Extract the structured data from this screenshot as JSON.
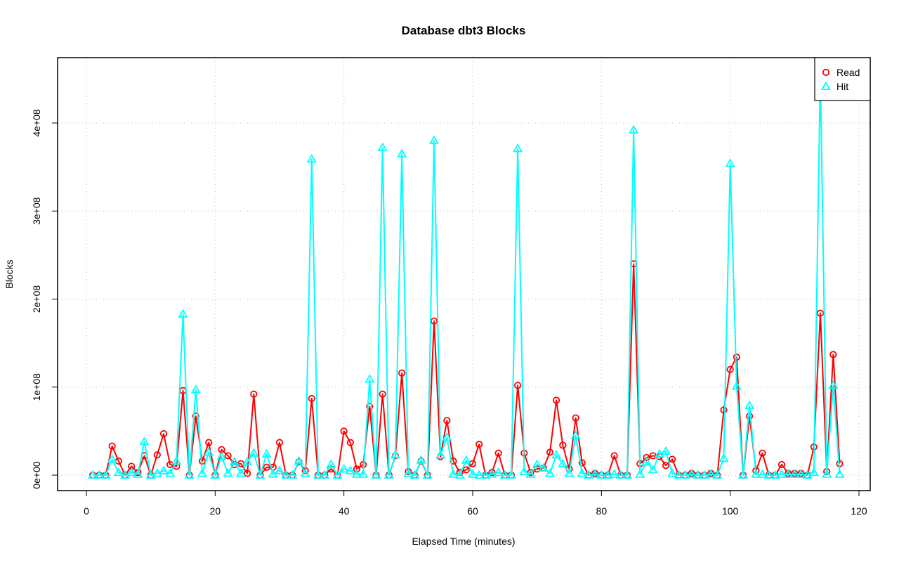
{
  "chart_data": {
    "type": "line",
    "title": "Database dbt3 Blocks",
    "xlabel": "Elapsed Time (minutes)",
    "ylabel": "Blocks",
    "xlim": [
      0,
      120
    ],
    "ylim": [
      0,
      460000000
    ],
    "x_ticks": [
      0,
      20,
      40,
      60,
      80,
      100,
      120
    ],
    "x_tick_labels": [
      "0",
      "20",
      "40",
      "60",
      "80",
      "100",
      "120"
    ],
    "y_ticks": [
      0,
      100000000,
      200000000,
      300000000,
      400000000
    ],
    "y_tick_labels": [
      "0e+00",
      "1e+08",
      "2e+08",
      "3e+08",
      "4e+08"
    ],
    "grid": true,
    "legend_position": "top-right",
    "x": [
      1,
      2,
      3,
      4,
      5,
      6,
      7,
      8,
      9,
      10,
      11,
      12,
      13,
      14,
      15,
      16,
      17,
      18,
      19,
      20,
      21,
      22,
      23,
      24,
      25,
      26,
      27,
      28,
      29,
      30,
      31,
      32,
      33,
      34,
      35,
      36,
      37,
      38,
      39,
      40,
      41,
      42,
      43,
      44,
      45,
      46,
      47,
      48,
      49,
      50,
      51,
      52,
      53,
      54,
      55,
      56,
      57,
      58,
      59,
      60,
      61,
      62,
      63,
      64,
      65,
      66,
      67,
      68,
      69,
      70,
      71,
      72,
      73,
      74,
      75,
      76,
      77,
      78,
      79,
      80,
      81,
      82,
      83,
      84,
      85,
      86,
      87,
      88,
      89,
      90,
      91,
      92,
      93,
      94,
      95,
      96,
      97,
      98,
      99,
      100,
      101,
      102,
      103,
      104,
      105,
      106,
      107,
      108,
      109,
      110,
      111,
      112,
      113,
      114,
      115,
      116,
      117
    ],
    "series": [
      {
        "name": "Read",
        "color": "#ff0000",
        "marker": "circle",
        "line_style": "solid",
        "values": [
          0,
          0,
          0,
          33000000,
          16000000,
          0,
          10000000,
          3000000,
          22000000,
          0,
          23000000,
          47000000,
          12000000,
          10000000,
          96000000,
          0,
          67000000,
          16000000,
          37000000,
          0,
          29000000,
          22000000,
          12000000,
          13000000,
          2000000,
          92000000,
          0,
          9000000,
          9000000,
          37000000,
          0,
          0,
          15000000,
          5000000,
          87000000,
          0,
          0,
          7000000,
          0,
          50000000,
          37000000,
          7000000,
          12000000,
          78000000,
          0,
          92000000,
          0,
          22000000,
          116000000,
          4000000,
          0,
          16000000,
          0,
          175000000,
          21000000,
          62000000,
          16000000,
          3000000,
          6000000,
          13000000,
          35000000,
          0,
          3000000,
          25000000,
          0,
          0,
          102000000,
          25000000,
          3000000,
          7000000,
          8000000,
          26000000,
          85000000,
          34000000,
          7000000,
          65000000,
          14000000,
          0,
          2000000,
          0,
          0,
          22000000,
          0,
          0,
          240000000,
          13000000,
          20000000,
          22000000,
          21000000,
          11000000,
          18000000,
          0,
          0,
          2000000,
          0,
          0,
          2000000,
          0,
          74000000,
          120000000,
          134000000,
          0,
          67000000,
          5000000,
          25000000,
          0,
          0,
          12000000,
          2000000,
          2000000,
          2000000,
          0,
          32000000,
          184000000,
          4000000,
          137000000,
          13000000
        ]
      },
      {
        "name": "Hit",
        "color": "#00ffff",
        "marker": "triangle",
        "line_style": "solid",
        "values": [
          0,
          0,
          0,
          18000000,
          3000000,
          0,
          3000000,
          1000000,
          38000000,
          0,
          2000000,
          5000000,
          2000000,
          16000000,
          183000000,
          0,
          97000000,
          2000000,
          26000000,
          0,
          21000000,
          2000000,
          15000000,
          2000000,
          15000000,
          25000000,
          0,
          24000000,
          1000000,
          5000000,
          0,
          0,
          16000000,
          2000000,
          359000000,
          0,
          0,
          12000000,
          0,
          7000000,
          5000000,
          1000000,
          1000000,
          109000000,
          0,
          372000000,
          0,
          23000000,
          365000000,
          2000000,
          0,
          17000000,
          0,
          380000000,
          23000000,
          43000000,
          1000000,
          0,
          17000000,
          1000000,
          0,
          0,
          1000000,
          3000000,
          0,
          0,
          371000000,
          4000000,
          1000000,
          12000000,
          8000000,
          2000000,
          23000000,
          13000000,
          2000000,
          45000000,
          2000000,
          0,
          1000000,
          0,
          0,
          1000000,
          0,
          0,
          392000000,
          1000000,
          15000000,
          6000000,
          24000000,
          27000000,
          2000000,
          0,
          0,
          1000000,
          0,
          0,
          1000000,
          0,
          19000000,
          354000000,
          101000000,
          0,
          79000000,
          1000000,
          1000000,
          0,
          0,
          1000000,
          1000000,
          1000000,
          1000000,
          0,
          3000000,
          459000000,
          1000000,
          102000000,
          1000000
        ]
      }
    ]
  }
}
